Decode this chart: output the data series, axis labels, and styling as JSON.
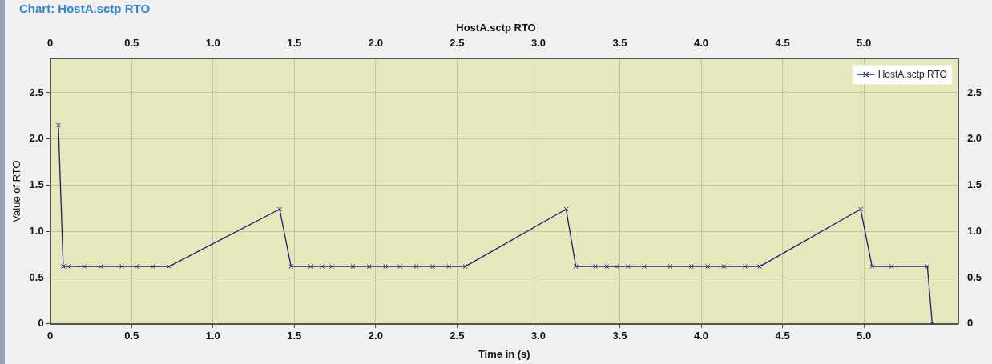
{
  "chart_data": {
    "type": "line",
    "title": "Chart: HostA.sctp RTO",
    "subtitle": "HostA.sctp RTO",
    "xlabel": "Time in (s)",
    "ylabel": "Value of RTO",
    "xlim": [
      0,
      5.58
    ],
    "xticks": [
      0,
      0.5,
      {
        "value": 1,
        "label": "1.0"
      },
      1.5,
      {
        "value": 2,
        "label": "2.0"
      },
      2.5,
      {
        "value": 3,
        "label": "3.0"
      },
      3.5,
      {
        "value": 4,
        "label": "4.0"
      },
      4.5,
      {
        "value": 5,
        "label": "5.0"
      }
    ],
    "x2lim": [
      0,
      5.58
    ],
    "x2ticks": [
      0,
      0.5,
      {
        "value": 1,
        "label": "1.0"
      },
      1.5,
      {
        "value": 2,
        "label": "2.0"
      },
      2.5,
      {
        "value": 3,
        "label": "3.0"
      },
      3.5,
      {
        "value": 4,
        "label": "4.0"
      },
      4.5,
      {
        "value": 5,
        "label": "5.0"
      }
    ],
    "ylim": [
      0,
      2.87
    ],
    "yticks": [
      0,
      0.5,
      {
        "value": 1,
        "label": "1.0"
      },
      1.5,
      {
        "value": 2,
        "label": "2.0"
      },
      2.5
    ],
    "y2lim": [
      0,
      2.87
    ],
    "y2ticks": [
      0,
      0.5,
      {
        "value": 1,
        "label": "1.0"
      },
      1.5,
      {
        "value": 2,
        "label": "2.0"
      },
      2.5
    ],
    "grid": true,
    "legend": "top right",
    "marker": "cross",
    "line_style": "solid",
    "series": [
      {
        "name": "HostA.sctp RTO",
        "color": "#1c1c78",
        "x": [
          0.05,
          0.08,
          0.11,
          0.21,
          0.31,
          0.44,
          0.53,
          0.63,
          0.73,
          1.41,
          1.48,
          1.6,
          1.67,
          1.73,
          1.86,
          1.96,
          2.06,
          2.15,
          2.25,
          2.35,
          2.45,
          2.55,
          3.17,
          3.23,
          3.35,
          3.42,
          3.48,
          3.55,
          3.65,
          3.81,
          3.94,
          4.04,
          4.14,
          4.27,
          4.36,
          4.98,
          5.05,
          5.17,
          5.39,
          5.42
        ],
        "values": [
          2.15,
          0.62,
          0.62,
          0.62,
          0.62,
          0.62,
          0.62,
          0.62,
          0.62,
          1.24,
          0.62,
          0.62,
          0.62,
          0.62,
          0.62,
          0.62,
          0.62,
          0.62,
          0.62,
          0.62,
          0.62,
          0.62,
          1.24,
          0.62,
          0.62,
          0.62,
          0.62,
          0.62,
          0.62,
          0.62,
          0.62,
          0.62,
          0.62,
          0.62,
          0.62,
          1.24,
          0.62,
          0.62,
          0.62,
          0
        ]
      }
    ]
  }
}
